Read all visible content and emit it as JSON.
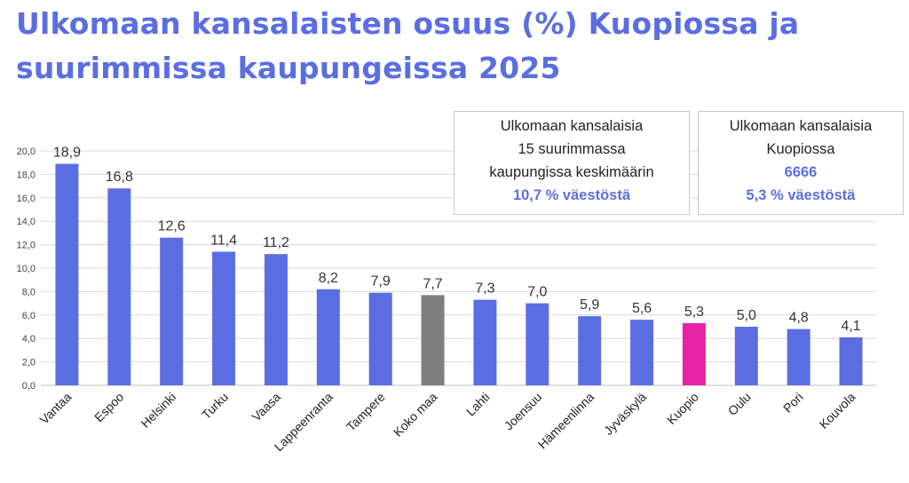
{
  "header": {
    "title_line1": "Ulkomaan kansalaisten osuus (%) Kuopiossa ja",
    "title_line2": "suurimmissa kaupungeissa 2025"
  },
  "info_boxes": [
    {
      "line1": "Ulkomaan kansalaisia",
      "line2": "15 suurimmassa",
      "line3": "kaupungissa keskimäärin",
      "highlight": "10,7 %  väestöstä"
    },
    {
      "line1": "Ulkomaan kansalaisia",
      "line2": "Kuopiossa",
      "highlight_number": "6666",
      "highlight": "5,3 %  väestöstä"
    }
  ],
  "colors": {
    "title": "#5b6ee1",
    "bar_default": "#5b6ee1",
    "bar_national": "#7f7f7f",
    "bar_kuopio": "#e622a8",
    "grid": "#d9d9d9"
  },
  "chart_data": {
    "type": "bar",
    "title": "Ulkomaan kansalaisten osuus (%) Kuopiossa ja suurimmissa kaupungeissa 2025",
    "xlabel": "",
    "ylabel": "",
    "ylim": [
      0,
      20
    ],
    "yticks": [
      "0,0",
      "2,0",
      "4,0",
      "6,0",
      "8,0",
      "10,0",
      "12,0",
      "14,0",
      "16,0",
      "18,0",
      "20,0"
    ],
    "grid": true,
    "categories": [
      "Vantaa",
      "Espoo",
      "Helsinki",
      "Turku",
      "Vaasa",
      "Lappeenranta",
      "Tampere",
      "Koko maa",
      "Lahti",
      "Joensuu",
      "Hämeenlinna",
      "Jyväskylä",
      "Kuopio",
      "Oulu",
      "Pori",
      "Kouvola"
    ],
    "values": [
      18.9,
      16.8,
      12.6,
      11.4,
      11.2,
      8.2,
      7.9,
      7.7,
      7.3,
      7.0,
      5.9,
      5.6,
      5.3,
      5.0,
      4.8,
      4.1
    ],
    "value_labels": [
      "18,9",
      "16,8",
      "12,6",
      "11,4",
      "11,2",
      "8,2",
      "7,9",
      "7,7",
      "7,3",
      "7,0",
      "5,9",
      "5,6",
      "5,3",
      "5,0",
      "4,8",
      "4,1"
    ],
    "highlight": {
      "Koko maa": "national",
      "Kuopio": "kuopio"
    }
  }
}
